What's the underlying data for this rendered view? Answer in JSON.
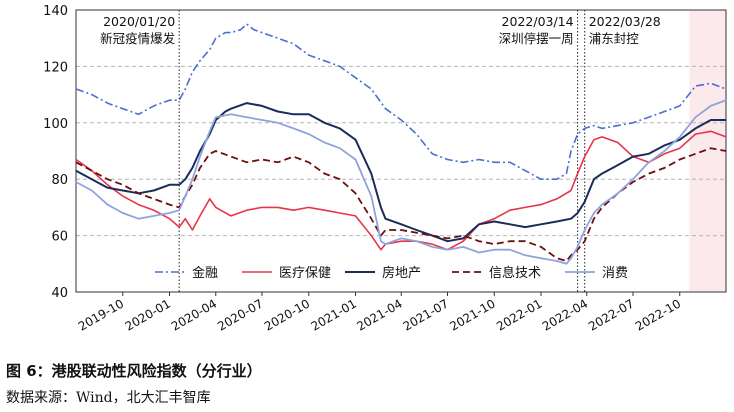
{
  "caption": "图 6：港股联动性风险指数（分行业）",
  "source": "数据来源：Wind，北大汇丰智库",
  "chart_data": {
    "type": "line",
    "ylim": [
      40,
      140
    ],
    "yticks": [
      40,
      60,
      80,
      100,
      120,
      140
    ],
    "xlim": [
      "2019-07-01",
      "2022-12-31"
    ],
    "xticks": [
      {
        "date": "2019-10-01",
        "label": "2019-10"
      },
      {
        "date": "2020-01-01",
        "label": "2020-01"
      },
      {
        "date": "2020-04-01",
        "label": "2020-04"
      },
      {
        "date": "2020-07-01",
        "label": "2020-07"
      },
      {
        "date": "2020-10-01",
        "label": "2020-10"
      },
      {
        "date": "2021-01-01",
        "label": "2021-01"
      },
      {
        "date": "2021-04-01",
        "label": "2021-04"
      },
      {
        "date": "2021-07-01",
        "label": "2021-07"
      },
      {
        "date": "2021-10-01",
        "label": "2021-10"
      },
      {
        "date": "2022-01-01",
        "label": "2022-01"
      },
      {
        "date": "2022-04-01",
        "label": "2022-04"
      },
      {
        "date": "2022-07-01",
        "label": "2022-07"
      },
      {
        "date": "2022-10-01",
        "label": "2022-10"
      }
    ],
    "grid": "horizontal dashed",
    "legend_position": "bottom",
    "shaded_region": {
      "from": "2022-10-20",
      "to": "2022-12-31",
      "color": "#fbe9ec"
    },
    "annotations": [
      {
        "date": "2020-01-20",
        "line1": "2020/01/20",
        "line2": "新冠疫情爆发"
      },
      {
        "date": "2022-03-14",
        "line1": "2022/03/14",
        "line2": "深圳停摆一周"
      },
      {
        "date": "2022-03-28",
        "line1": "2022/03/28",
        "line2": "浦东封控"
      }
    ],
    "series": [
      {
        "name": "金融",
        "color": "#4a6fcf",
        "style": "dashdot",
        "width": 1.6,
        "points": [
          [
            "2019-07-01",
            112
          ],
          [
            "2019-08-01",
            110
          ],
          [
            "2019-09-01",
            107
          ],
          [
            "2019-10-01",
            105
          ],
          [
            "2019-11-01",
            103
          ],
          [
            "2019-12-01",
            106
          ],
          [
            "2020-01-01",
            108
          ],
          [
            "2020-01-20",
            108
          ],
          [
            "2020-02-01",
            112
          ],
          [
            "2020-02-15",
            118
          ],
          [
            "2020-03-01",
            122
          ],
          [
            "2020-03-20",
            126
          ],
          [
            "2020-04-01",
            130
          ],
          [
            "2020-04-20",
            132
          ],
          [
            "2020-05-01",
            132
          ],
          [
            "2020-05-20",
            133
          ],
          [
            "2020-06-01",
            135
          ],
          [
            "2020-06-15",
            133
          ],
          [
            "2020-07-01",
            132
          ],
          [
            "2020-08-01",
            130
          ],
          [
            "2020-09-01",
            128
          ],
          [
            "2020-10-01",
            124
          ],
          [
            "2020-11-01",
            122
          ],
          [
            "2020-12-01",
            120
          ],
          [
            "2021-01-01",
            116
          ],
          [
            "2021-02-01",
            112
          ],
          [
            "2021-03-01",
            105
          ],
          [
            "2021-04-01",
            101
          ],
          [
            "2021-05-01",
            96
          ],
          [
            "2021-06-01",
            89
          ],
          [
            "2021-07-01",
            87
          ],
          [
            "2021-08-01",
            86
          ],
          [
            "2021-09-01",
            87
          ],
          [
            "2021-10-01",
            86
          ],
          [
            "2021-11-01",
            86
          ],
          [
            "2021-12-01",
            83
          ],
          [
            "2022-01-01",
            80
          ],
          [
            "2022-02-01",
            80
          ],
          [
            "2022-02-20",
            82
          ],
          [
            "2022-03-01",
            90
          ],
          [
            "2022-03-14",
            96
          ],
          [
            "2022-03-28",
            98
          ],
          [
            "2022-04-15",
            99
          ],
          [
            "2022-05-01",
            98
          ],
          [
            "2022-06-01",
            99
          ],
          [
            "2022-07-01",
            100
          ],
          [
            "2022-08-01",
            102
          ],
          [
            "2022-09-01",
            104
          ],
          [
            "2022-10-01",
            106
          ],
          [
            "2022-11-01",
            113
          ],
          [
            "2022-12-01",
            114
          ],
          [
            "2022-12-31",
            112
          ]
        ]
      },
      {
        "name": "医疗保健",
        "color": "#e8334a",
        "style": "solid",
        "width": 1.6,
        "points": [
          [
            "2019-07-01",
            87
          ],
          [
            "2019-08-01",
            83
          ],
          [
            "2019-09-01",
            78
          ],
          [
            "2019-10-01",
            74
          ],
          [
            "2019-11-01",
            71
          ],
          [
            "2019-12-01",
            69
          ],
          [
            "2020-01-01",
            66
          ],
          [
            "2020-01-20",
            63
          ],
          [
            "2020-02-01",
            66
          ],
          [
            "2020-02-15",
            62
          ],
          [
            "2020-03-01",
            67
          ],
          [
            "2020-03-20",
            73
          ],
          [
            "2020-04-01",
            70
          ],
          [
            "2020-05-01",
            67
          ],
          [
            "2020-06-01",
            69
          ],
          [
            "2020-07-01",
            70
          ],
          [
            "2020-08-01",
            70
          ],
          [
            "2020-09-01",
            69
          ],
          [
            "2020-10-01",
            70
          ],
          [
            "2020-11-01",
            69
          ],
          [
            "2020-12-01",
            68
          ],
          [
            "2021-01-01",
            67
          ],
          [
            "2021-02-01",
            60
          ],
          [
            "2021-02-20",
            55
          ],
          [
            "2021-03-01",
            57
          ],
          [
            "2021-04-01",
            58
          ],
          [
            "2021-05-01",
            58
          ],
          [
            "2021-06-01",
            57
          ],
          [
            "2021-07-01",
            55
          ],
          [
            "2021-08-01",
            58
          ],
          [
            "2021-09-01",
            64
          ],
          [
            "2021-10-01",
            66
          ],
          [
            "2021-11-01",
            69
          ],
          [
            "2021-12-01",
            70
          ],
          [
            "2022-01-01",
            71
          ],
          [
            "2022-02-01",
            73
          ],
          [
            "2022-03-01",
            76
          ],
          [
            "2022-03-14",
            82
          ],
          [
            "2022-03-28",
            88
          ],
          [
            "2022-04-15",
            94
          ],
          [
            "2022-05-01",
            95
          ],
          [
            "2022-06-01",
            93
          ],
          [
            "2022-07-01",
            88
          ],
          [
            "2022-08-01",
            86
          ],
          [
            "2022-09-01",
            89
          ],
          [
            "2022-10-01",
            91
          ],
          [
            "2022-11-01",
            96
          ],
          [
            "2022-12-01",
            97
          ],
          [
            "2022-12-31",
            95
          ]
        ]
      },
      {
        "name": "房地产",
        "color": "#1a2b5c",
        "style": "solid",
        "width": 2.0,
        "points": [
          [
            "2019-07-01",
            83
          ],
          [
            "2019-08-01",
            80
          ],
          [
            "2019-09-01",
            77
          ],
          [
            "2019-10-01",
            76
          ],
          [
            "2019-11-01",
            75
          ],
          [
            "2019-12-01",
            76
          ],
          [
            "2020-01-01",
            78
          ],
          [
            "2020-01-20",
            78
          ],
          [
            "2020-02-01",
            80
          ],
          [
            "2020-02-15",
            84
          ],
          [
            "2020-03-01",
            90
          ],
          [
            "2020-03-20",
            96
          ],
          [
            "2020-04-01",
            101
          ],
          [
            "2020-04-20",
            104
          ],
          [
            "2020-05-01",
            105
          ],
          [
            "2020-06-01",
            107
          ],
          [
            "2020-07-01",
            106
          ],
          [
            "2020-08-01",
            104
          ],
          [
            "2020-09-01",
            103
          ],
          [
            "2020-10-01",
            103
          ],
          [
            "2020-11-01",
            100
          ],
          [
            "2020-12-01",
            98
          ],
          [
            "2021-01-01",
            94
          ],
          [
            "2021-02-01",
            82
          ],
          [
            "2021-02-20",
            70
          ],
          [
            "2021-03-01",
            66
          ],
          [
            "2021-04-01",
            64
          ],
          [
            "2021-05-01",
            62
          ],
          [
            "2021-06-01",
            60
          ],
          [
            "2021-07-01",
            58
          ],
          [
            "2021-08-01",
            59
          ],
          [
            "2021-09-01",
            64
          ],
          [
            "2021-10-01",
            65
          ],
          [
            "2021-11-01",
            64
          ],
          [
            "2021-12-01",
            63
          ],
          [
            "2022-01-01",
            64
          ],
          [
            "2022-02-01",
            65
          ],
          [
            "2022-03-01",
            66
          ],
          [
            "2022-03-14",
            68
          ],
          [
            "2022-03-28",
            72
          ],
          [
            "2022-04-15",
            80
          ],
          [
            "2022-05-01",
            82
          ],
          [
            "2022-06-01",
            85
          ],
          [
            "2022-07-01",
            88
          ],
          [
            "2022-08-01",
            89
          ],
          [
            "2022-09-01",
            92
          ],
          [
            "2022-10-01",
            94
          ],
          [
            "2022-11-01",
            98
          ],
          [
            "2022-12-01",
            101
          ],
          [
            "2022-12-31",
            101
          ]
        ]
      },
      {
        "name": "信息技术",
        "color": "#6b0f0f",
        "style": "dashed",
        "width": 1.8,
        "points": [
          [
            "2019-07-01",
            86
          ],
          [
            "2019-08-01",
            83
          ],
          [
            "2019-09-01",
            80
          ],
          [
            "2019-10-01",
            78
          ],
          [
            "2019-11-01",
            75
          ],
          [
            "2019-12-01",
            73
          ],
          [
            "2020-01-01",
            71
          ],
          [
            "2020-01-20",
            70
          ],
          [
            "2020-02-01",
            74
          ],
          [
            "2020-02-15",
            78
          ],
          [
            "2020-03-01",
            84
          ],
          [
            "2020-03-20",
            89
          ],
          [
            "2020-04-01",
            90
          ],
          [
            "2020-05-01",
            88
          ],
          [
            "2020-06-01",
            86
          ],
          [
            "2020-07-01",
            87
          ],
          [
            "2020-08-01",
            86
          ],
          [
            "2020-09-01",
            88
          ],
          [
            "2020-10-01",
            86
          ],
          [
            "2020-11-01",
            82
          ],
          [
            "2020-12-01",
            80
          ],
          [
            "2021-01-01",
            75
          ],
          [
            "2021-02-01",
            66
          ],
          [
            "2021-02-20",
            60
          ],
          [
            "2021-03-01",
            62
          ],
          [
            "2021-04-01",
            62
          ],
          [
            "2021-05-01",
            61
          ],
          [
            "2021-06-01",
            60
          ],
          [
            "2021-07-01",
            59
          ],
          [
            "2021-08-01",
            60
          ],
          [
            "2021-09-01",
            58
          ],
          [
            "2021-10-01",
            57
          ],
          [
            "2021-11-01",
            58
          ],
          [
            "2021-12-01",
            58
          ],
          [
            "2022-01-01",
            56
          ],
          [
            "2022-02-01",
            52
          ],
          [
            "2022-02-20",
            51
          ],
          [
            "2022-03-01",
            53
          ],
          [
            "2022-03-14",
            55
          ],
          [
            "2022-03-28",
            58
          ],
          [
            "2022-04-15",
            66
          ],
          [
            "2022-05-01",
            70
          ],
          [
            "2022-06-01",
            75
          ],
          [
            "2022-07-01",
            79
          ],
          [
            "2022-08-01",
            82
          ],
          [
            "2022-09-01",
            84
          ],
          [
            "2022-10-01",
            87
          ],
          [
            "2022-11-01",
            89
          ],
          [
            "2022-12-01",
            91
          ],
          [
            "2022-12-31",
            90
          ]
        ]
      },
      {
        "name": "消费",
        "color": "#8ea4dc",
        "style": "solid",
        "width": 1.8,
        "points": [
          [
            "2019-07-01",
            79
          ],
          [
            "2019-08-01",
            76
          ],
          [
            "2019-09-01",
            71
          ],
          [
            "2019-10-01",
            68
          ],
          [
            "2019-11-01",
            66
          ],
          [
            "2019-12-01",
            67
          ],
          [
            "2020-01-01",
            68
          ],
          [
            "2020-01-20",
            69
          ],
          [
            "2020-02-01",
            74
          ],
          [
            "2020-02-15",
            80
          ],
          [
            "2020-03-01",
            88
          ],
          [
            "2020-03-20",
            97
          ],
          [
            "2020-04-01",
            102
          ],
          [
            "2020-05-01",
            103
          ],
          [
            "2020-06-01",
            102
          ],
          [
            "2020-07-01",
            101
          ],
          [
            "2020-08-01",
            100
          ],
          [
            "2020-09-01",
            98
          ],
          [
            "2020-10-01",
            96
          ],
          [
            "2020-11-01",
            93
          ],
          [
            "2020-12-01",
            91
          ],
          [
            "2021-01-01",
            87
          ],
          [
            "2021-02-01",
            74
          ],
          [
            "2021-02-20",
            58
          ],
          [
            "2021-03-01",
            57
          ],
          [
            "2021-04-01",
            59
          ],
          [
            "2021-05-01",
            58
          ],
          [
            "2021-06-01",
            56
          ],
          [
            "2021-07-01",
            55
          ],
          [
            "2021-08-01",
            56
          ],
          [
            "2021-09-01",
            54
          ],
          [
            "2021-10-01",
            55
          ],
          [
            "2021-11-01",
            55
          ],
          [
            "2021-12-01",
            53
          ],
          [
            "2022-01-01",
            52
          ],
          [
            "2022-02-01",
            51
          ],
          [
            "2022-02-20",
            50
          ],
          [
            "2022-03-01",
            52
          ],
          [
            "2022-03-14",
            56
          ],
          [
            "2022-03-28",
            62
          ],
          [
            "2022-04-15",
            68
          ],
          [
            "2022-05-01",
            71
          ],
          [
            "2022-06-01",
            75
          ],
          [
            "2022-07-01",
            80
          ],
          [
            "2022-08-01",
            86
          ],
          [
            "2022-09-01",
            90
          ],
          [
            "2022-10-01",
            95
          ],
          [
            "2022-11-01",
            102
          ],
          [
            "2022-12-01",
            106
          ],
          [
            "2022-12-31",
            108
          ]
        ]
      }
    ]
  }
}
